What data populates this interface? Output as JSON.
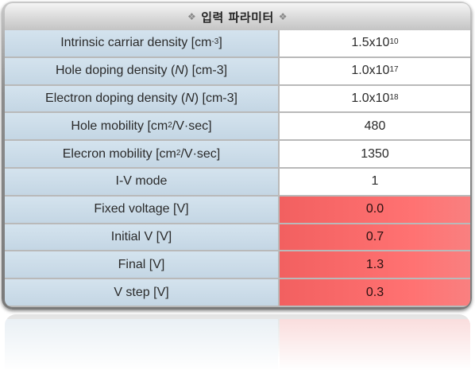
{
  "title": "입력 파라미터",
  "title_decoration": "❖",
  "colors": {
    "label_bg": "#c8d9e6",
    "value_bg": "#ffffff",
    "highlight_bg": "#ff6b6b"
  },
  "rows": [
    {
      "label_main": "Intrinsic carriar density [cm",
      "label_sup": "-3",
      "label_italic": "",
      "label_tail": "]",
      "value_main": "1.5x10",
      "value_sup": "10",
      "highlight": false
    },
    {
      "label_main": "Hole doping density (",
      "label_sup": "",
      "label_italic": "N",
      "label_tail": " ) [cm-3]",
      "value_main": "1.0x10",
      "value_sup": "17",
      "highlight": false
    },
    {
      "label_main": "Electron doping density (",
      "label_sup": "",
      "label_italic": "N",
      "label_tail": " ) [cm-3]",
      "value_main": "1.0x10",
      "value_sup": "18",
      "highlight": false
    },
    {
      "label_main": "Hole mobility [cm",
      "label_sup": "2",
      "label_italic": "",
      "label_tail": "/V·sec]",
      "value_main": "480",
      "value_sup": "",
      "highlight": false
    },
    {
      "label_main": "Elecron mobility [cm",
      "label_sup": "2",
      "label_italic": "",
      "label_tail": "/V·sec]",
      "value_main": "1350",
      "value_sup": "",
      "highlight": false
    },
    {
      "label_main": "I-V mode",
      "label_sup": "",
      "label_italic": "",
      "label_tail": "",
      "value_main": "1",
      "value_sup": "",
      "highlight": false
    },
    {
      "label_main": "Fixed voltage [V]",
      "label_sup": "",
      "label_italic": "",
      "label_tail": "",
      "value_main": "0.0",
      "value_sup": "",
      "highlight": true
    },
    {
      "label_main": "Initial V [V]",
      "label_sup": "",
      "label_italic": "",
      "label_tail": "",
      "value_main": "0.7",
      "value_sup": "",
      "highlight": true
    },
    {
      "label_main": "Final [V]",
      "label_sup": "",
      "label_italic": "",
      "label_tail": "",
      "value_main": "1.3",
      "value_sup": "",
      "highlight": true
    },
    {
      "label_main": "V step [V]",
      "label_sup": "",
      "label_italic": "",
      "label_tail": "",
      "value_main": "0.3",
      "value_sup": "",
      "highlight": true
    }
  ]
}
